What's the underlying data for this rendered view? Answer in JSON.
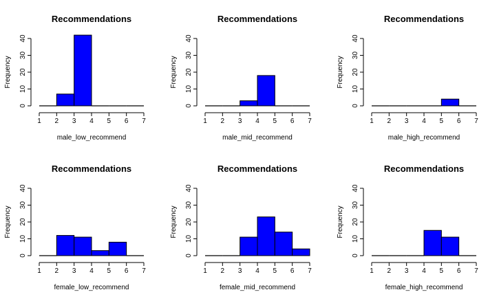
{
  "chart_data": [
    {
      "type": "bar",
      "title": "Recommendations",
      "xlabel": "male_low_recommend",
      "ylabel": "Frequency",
      "xlim": [
        1,
        7
      ],
      "ylim": [
        0,
        40
      ],
      "xticks": [
        1,
        2,
        3,
        4,
        5,
        6,
        7
      ],
      "yticks": [
        0,
        10,
        20,
        30,
        40
      ],
      "bins": [
        [
          1,
          2
        ],
        [
          2,
          3
        ],
        [
          3,
          4
        ],
        [
          4,
          5
        ],
        [
          5,
          6
        ],
        [
          6,
          7
        ]
      ],
      "values": [
        0,
        7,
        42,
        0,
        0,
        0
      ],
      "bar_color": "#0000ff",
      "grid": false
    },
    {
      "type": "bar",
      "title": "Recommendations",
      "xlabel": "male_mid_recommend",
      "ylabel": "Frequency",
      "xlim": [
        1,
        7
      ],
      "ylim": [
        0,
        40
      ],
      "xticks": [
        1,
        2,
        3,
        4,
        5,
        6,
        7
      ],
      "yticks": [
        0,
        10,
        20,
        30,
        40
      ],
      "bins": [
        [
          1,
          2
        ],
        [
          2,
          3
        ],
        [
          3,
          4
        ],
        [
          4,
          5
        ],
        [
          5,
          6
        ],
        [
          6,
          7
        ]
      ],
      "values": [
        0,
        0,
        3,
        18,
        0,
        0
      ],
      "bar_color": "#0000ff",
      "grid": false
    },
    {
      "type": "bar",
      "title": "Recommendations",
      "xlabel": "male_high_recommend",
      "ylabel": "Frequency",
      "xlim": [
        1,
        7
      ],
      "ylim": [
        0,
        40
      ],
      "xticks": [
        1,
        2,
        3,
        4,
        5,
        6,
        7
      ],
      "yticks": [
        0,
        10,
        20,
        30,
        40
      ],
      "bins": [
        [
          1,
          2
        ],
        [
          2,
          3
        ],
        [
          3,
          4
        ],
        [
          4,
          5
        ],
        [
          5,
          6
        ],
        [
          6,
          7
        ]
      ],
      "values": [
        0,
        0,
        0,
        0,
        4,
        0
      ],
      "bar_color": "#0000ff",
      "grid": false
    },
    {
      "type": "bar",
      "title": "Recommendations",
      "xlabel": "female_low_recommend",
      "ylabel": "Frequency",
      "xlim": [
        1,
        7
      ],
      "ylim": [
        0,
        40
      ],
      "xticks": [
        1,
        2,
        3,
        4,
        5,
        6,
        7
      ],
      "yticks": [
        0,
        10,
        20,
        30,
        40
      ],
      "bins": [
        [
          1,
          2
        ],
        [
          2,
          3
        ],
        [
          3,
          4
        ],
        [
          4,
          5
        ],
        [
          5,
          6
        ],
        [
          6,
          7
        ]
      ],
      "values": [
        0,
        12,
        11,
        3,
        8,
        0
      ],
      "bar_color": "#0000ff",
      "grid": false
    },
    {
      "type": "bar",
      "title": "Recommendations",
      "xlabel": "female_mid_recommend",
      "ylabel": "Frequency",
      "xlim": [
        1,
        7
      ],
      "ylim": [
        0,
        40
      ],
      "xticks": [
        1,
        2,
        3,
        4,
        5,
        6,
        7
      ],
      "yticks": [
        0,
        10,
        20,
        30,
        40
      ],
      "bins": [
        [
          1,
          2
        ],
        [
          2,
          3
        ],
        [
          3,
          4
        ],
        [
          4,
          5
        ],
        [
          5,
          6
        ],
        [
          6,
          7
        ]
      ],
      "values": [
        0,
        0,
        11,
        23,
        14,
        4
      ],
      "bar_color": "#0000ff",
      "grid": false
    },
    {
      "type": "bar",
      "title": "Recommendations",
      "xlabel": "female_high_recommend",
      "ylabel": "Frequency",
      "xlim": [
        1,
        7
      ],
      "ylim": [
        0,
        40
      ],
      "xticks": [
        1,
        2,
        3,
        4,
        5,
        6,
        7
      ],
      "yticks": [
        0,
        10,
        20,
        30,
        40
      ],
      "bins": [
        [
          1,
          2
        ],
        [
          2,
          3
        ],
        [
          3,
          4
        ],
        [
          4,
          5
        ],
        [
          5,
          6
        ],
        [
          6,
          7
        ]
      ],
      "values": [
        0,
        0,
        0,
        15,
        11,
        0
      ],
      "bar_color": "#0000ff",
      "grid": false
    }
  ]
}
